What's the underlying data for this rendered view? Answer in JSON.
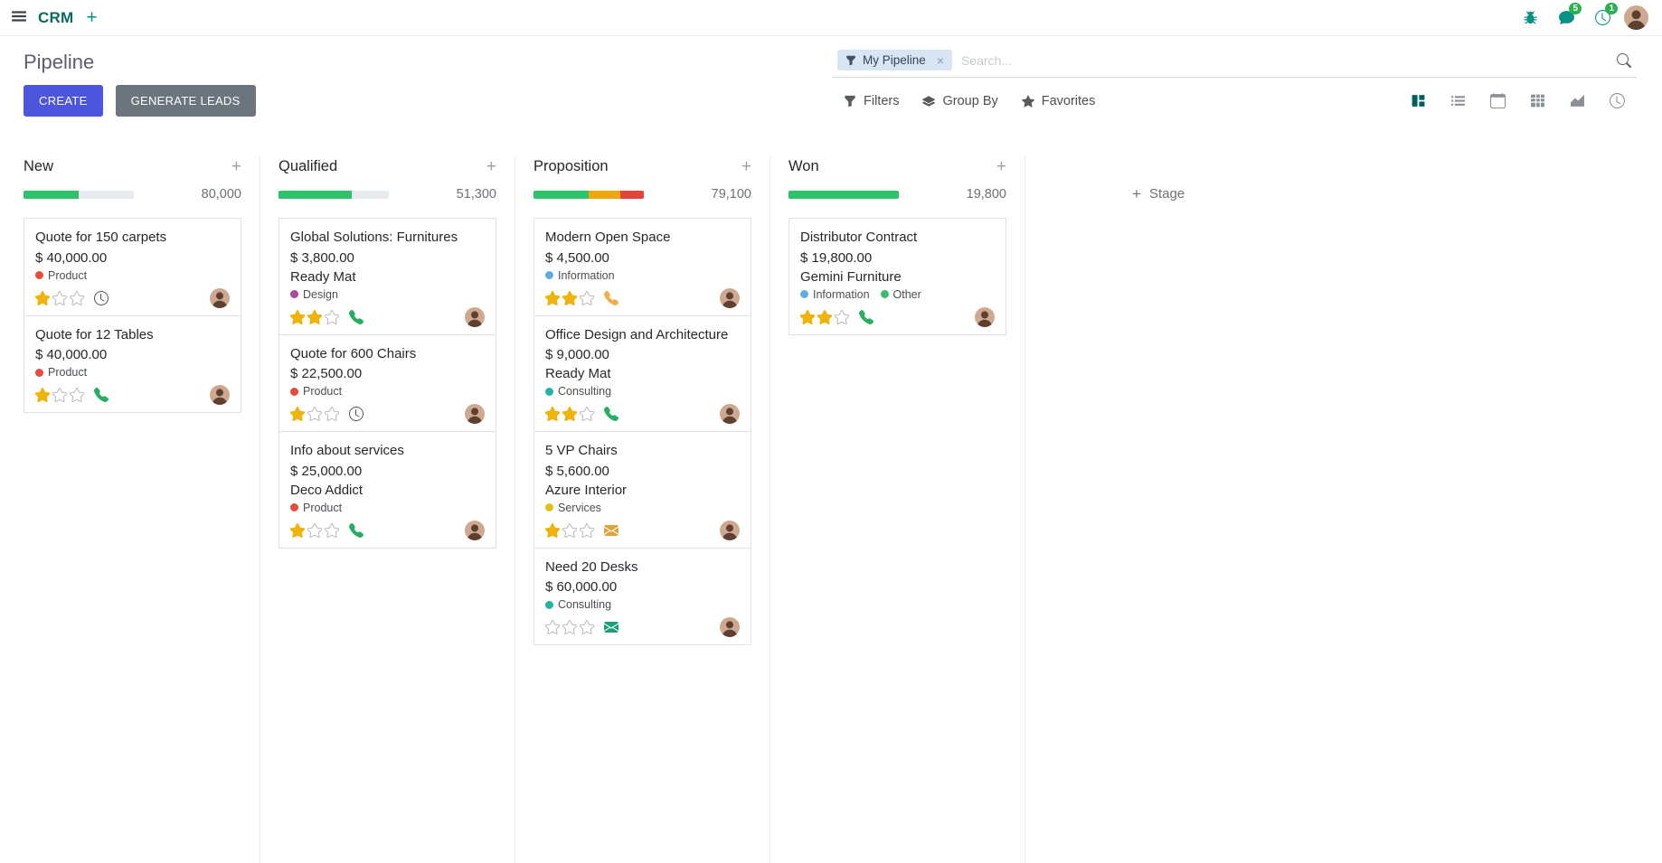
{
  "glyphs": {
    "plus": "+",
    "close": "×"
  },
  "navbar": {
    "app_name": "CRM",
    "messages_badge": "5",
    "activities_badge": "1"
  },
  "control_panel": {
    "title": "Pipeline",
    "search": {
      "facet_label": "My Pipeline",
      "placeholder": "Search..."
    },
    "buttons": {
      "create": "CREATE",
      "generate_leads": "GENERATE LEADS",
      "filters": "Filters",
      "group_by": "Group By",
      "favorites": "Favorites"
    },
    "view_switcher": {
      "active": "kanban",
      "views": [
        "kanban",
        "list",
        "calendar",
        "pivot",
        "graph",
        "activity"
      ]
    }
  },
  "board": {
    "add_stage_label": "Stage",
    "columns": [
      {
        "name": "New",
        "total": "80,000",
        "progress": [
          {
            "color": "#2dc26b",
            "pct": 50
          }
        ],
        "cards": [
          {
            "title": "Quote for 150 carpets",
            "amount": "$ 40,000.00",
            "tags": [
              {
                "label": "Product",
                "color": "#e74c3c"
              }
            ],
            "stars": 1,
            "activity": {
              "icon": "clock",
              "color": "#51565c"
            }
          },
          {
            "title": "Quote for 12 Tables",
            "amount": "$ 40,000.00",
            "tags": [
              {
                "label": "Product",
                "color": "#e74c3c"
              }
            ],
            "stars": 1,
            "activity": {
              "icon": "phone",
              "color": "#27ae60"
            }
          }
        ]
      },
      {
        "name": "Qualified",
        "total": "51,300",
        "progress": [
          {
            "color": "#2dc26b",
            "pct": 66
          }
        ],
        "cards": [
          {
            "title": "Global Solutions: Furnitures",
            "amount": "$ 3,800.00",
            "partner": "Ready Mat",
            "tags": [
              {
                "label": "Design",
                "color": "#a74a9c"
              }
            ],
            "stars": 2,
            "activity": {
              "icon": "phone",
              "color": "#27ae60"
            }
          },
          {
            "title": "Quote for 600 Chairs",
            "amount": "$ 22,500.00",
            "tags": [
              {
                "label": "Product",
                "color": "#e74c3c"
              }
            ],
            "stars": 1,
            "activity": {
              "icon": "clock",
              "color": "#51565c"
            }
          },
          {
            "title": "Info about services",
            "amount": "$ 25,000.00",
            "partner": "Deco Addict",
            "tags": [
              {
                "label": "Product",
                "color": "#e74c3c"
              }
            ],
            "stars": 1,
            "activity": {
              "icon": "phone",
              "color": "#27ae60"
            }
          }
        ]
      },
      {
        "name": "Proposition",
        "total": "79,100",
        "progress": [
          {
            "color": "#2dc26b",
            "pct": 50
          },
          {
            "color": "#f0a70d",
            "pct": 29
          },
          {
            "color": "#e4443c",
            "pct": 21
          }
        ],
        "cards": [
          {
            "title": "Modern Open Space",
            "amount": "$ 4,500.00",
            "tags": [
              {
                "label": "Information",
                "color": "#5dade2"
              }
            ],
            "stars": 2,
            "activity": {
              "icon": "phone",
              "color": "#f0ad4e"
            }
          },
          {
            "title": "Office Design and Architecture",
            "amount": "$ 9,000.00",
            "partner": "Ready Mat",
            "tags": [
              {
                "label": "Consulting",
                "color": "#21b3a6"
              }
            ],
            "stars": 2,
            "activity": {
              "icon": "phone",
              "color": "#27ae60"
            }
          },
          {
            "title": "5 VP Chairs",
            "amount": "$ 5,600.00",
            "partner": "Azure Interior",
            "tags": [
              {
                "label": "Services",
                "color": "#e2c118"
              }
            ],
            "stars": 1,
            "activity": {
              "icon": "envelope",
              "color": "#e2a33d"
            }
          },
          {
            "title": "Need 20 Desks",
            "amount": "$ 60,000.00",
            "tags": [
              {
                "label": "Consulting",
                "color": "#21b3a6"
              }
            ],
            "stars": 0,
            "activity": {
              "icon": "envelope",
              "color": "#1aa179"
            }
          }
        ]
      },
      {
        "name": "Won",
        "total": "19,800",
        "progress": [
          {
            "color": "#2dc26b",
            "pct": 100
          }
        ],
        "cards": [
          {
            "title": "Distributor Contract",
            "amount": "$ 19,800.00",
            "partner": "Gemini Furniture",
            "tags": [
              {
                "label": "Information",
                "color": "#5dade2"
              },
              {
                "label": "Other",
                "color": "#3cba6e"
              }
            ],
            "stars": 2,
            "activity": {
              "icon": "phone",
              "color": "#27ae60"
            }
          }
        ]
      }
    ]
  }
}
